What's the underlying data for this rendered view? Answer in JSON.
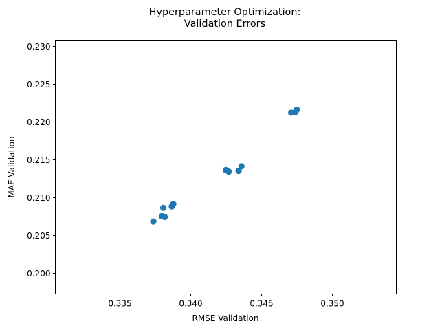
{
  "chart_data": {
    "type": "scatter",
    "title_lines": [
      "Hyperparameter Optimization:",
      "Validation Errors"
    ],
    "xlabel": "RMSE Validation",
    "ylabel": "MAE Validation",
    "xlim": [
      0.3305,
      0.3545
    ],
    "ylim": [
      0.1972,
      0.2308
    ],
    "xticks": [
      0.335,
      0.34,
      0.345,
      0.35
    ],
    "xtick_labels": [
      "0.335",
      "0.340",
      "0.345",
      "0.350"
    ],
    "yticks": [
      0.2,
      0.205,
      0.21,
      0.215,
      0.22,
      0.225,
      0.23
    ],
    "ytick_labels": [
      "0.200",
      "0.205",
      "0.210",
      "0.215",
      "0.220",
      "0.225",
      "0.230"
    ],
    "grid": false,
    "marker_color": "#1f77b4",
    "points": [
      {
        "x": 0.3374,
        "y": 0.2068
      },
      {
        "x": 0.338,
        "y": 0.2075
      },
      {
        "x": 0.3382,
        "y": 0.2074
      },
      {
        "x": 0.3381,
        "y": 0.2086
      },
      {
        "x": 0.3387,
        "y": 0.2088
      },
      {
        "x": 0.3388,
        "y": 0.2091
      },
      {
        "x": 0.3425,
        "y": 0.2136
      },
      {
        "x": 0.3427,
        "y": 0.2134
      },
      {
        "x": 0.3434,
        "y": 0.2135
      },
      {
        "x": 0.3436,
        "y": 0.2141
      },
      {
        "x": 0.3471,
        "y": 0.2212
      },
      {
        "x": 0.3474,
        "y": 0.2213
      },
      {
        "x": 0.3475,
        "y": 0.2216
      }
    ]
  }
}
